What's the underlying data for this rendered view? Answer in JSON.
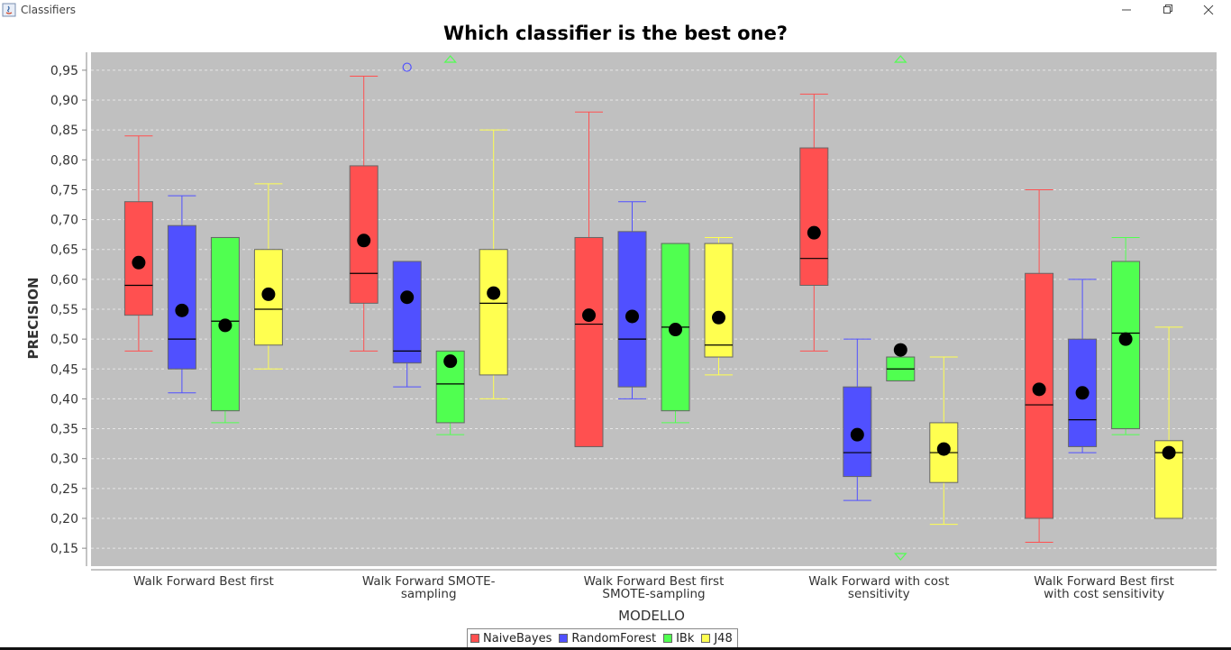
{
  "window": {
    "title": "Classifiers",
    "icons": {
      "app": "java-icon",
      "minimize": "minimize-icon",
      "maximize": "restore-icon",
      "close": "close-icon"
    }
  },
  "chart_data": {
    "type": "boxplot",
    "title": "Which classifier is the best one?",
    "xlabel": "MODELLO",
    "ylabel": "PRECISION",
    "ylim": [
      0.12,
      0.98
    ],
    "yticks": [
      0.95,
      0.9,
      0.85,
      0.8,
      0.75,
      0.7,
      0.65,
      0.6,
      0.55,
      0.5,
      0.45,
      0.4,
      0.35,
      0.3,
      0.25,
      0.2,
      0.15
    ],
    "ytick_labels": [
      "0,95",
      "0,90",
      "0,85",
      "0,80",
      "0,75",
      "0,70",
      "0,65",
      "0,60",
      "0,55",
      "0,50",
      "0,45",
      "0,40",
      "0,35",
      "0,30",
      "0,25",
      "0,20",
      "0,15"
    ],
    "grid": true,
    "legend_position": "bottom-center",
    "colors": {
      "plot_background": "#c0c0c0",
      "grid": "#e6e6e6"
    },
    "categories": [
      [
        "Walk Forward Best first"
      ],
      [
        "Walk Forward SMOTE-",
        "sampling"
      ],
      [
        "Walk Forward Best first",
        "SMOTE-sampling"
      ],
      [
        "Walk Forward with cost",
        "sensitivity"
      ],
      [
        "Walk Forward Best first",
        "with cost sensitivity"
      ]
    ],
    "series": [
      {
        "name": "NaiveBayes",
        "color": "#ff5050",
        "boxes": [
          {
            "min": 0.48,
            "q1": 0.54,
            "median": 0.59,
            "q3": 0.73,
            "max": 0.84,
            "mean": 0.628,
            "outliers": []
          },
          {
            "min": 0.48,
            "q1": 0.56,
            "median": 0.61,
            "q3": 0.79,
            "max": 0.94,
            "mean": 0.665,
            "outliers": []
          },
          {
            "min": 0.32,
            "q1": 0.32,
            "median": 0.525,
            "q3": 0.67,
            "max": 0.88,
            "mean": 0.54,
            "outliers": []
          },
          {
            "min": 0.48,
            "q1": 0.59,
            "median": 0.635,
            "q3": 0.82,
            "max": 0.91,
            "mean": 0.678,
            "outliers": []
          },
          {
            "min": 0.16,
            "q1": 0.2,
            "median": 0.39,
            "q3": 0.61,
            "max": 0.75,
            "mean": 0.416,
            "outliers": []
          }
        ]
      },
      {
        "name": "RandomForest",
        "color": "#5050ff",
        "boxes": [
          {
            "min": 0.41,
            "q1": 0.45,
            "median": 0.5,
            "q3": 0.69,
            "max": 0.74,
            "mean": 0.548,
            "outliers": []
          },
          {
            "min": 0.42,
            "q1": 0.46,
            "median": 0.48,
            "q3": 0.63,
            "max": 0.63,
            "mean": 0.57,
            "outliers": [
              0.955
            ]
          },
          {
            "min": 0.4,
            "q1": 0.42,
            "median": 0.5,
            "q3": 0.68,
            "max": 0.73,
            "mean": 0.538,
            "outliers": []
          },
          {
            "min": 0.23,
            "q1": 0.27,
            "median": 0.31,
            "q3": 0.42,
            "max": 0.5,
            "mean": 0.34,
            "outliers": []
          },
          {
            "min": 0.31,
            "q1": 0.32,
            "median": 0.365,
            "q3": 0.5,
            "max": 0.6,
            "mean": 0.41,
            "outliers": []
          }
        ]
      },
      {
        "name": "IBk",
        "color": "#50ff50",
        "boxes": [
          {
            "min": 0.36,
            "q1": 0.38,
            "median": 0.53,
            "q3": 0.67,
            "max": 0.67,
            "mean": 0.523,
            "outliers": []
          },
          {
            "min": 0.34,
            "q1": 0.36,
            "median": 0.425,
            "q3": 0.48,
            "max": 0.48,
            "mean": 0.463,
            "outliers": [],
            "far_out_above": true
          },
          {
            "min": 0.36,
            "q1": 0.38,
            "median": 0.52,
            "q3": 0.66,
            "max": 0.66,
            "mean": 0.516,
            "outliers": []
          },
          {
            "min": 0.43,
            "q1": 0.43,
            "median": 0.45,
            "q3": 0.47,
            "max": 0.47,
            "mean": 0.482,
            "outliers": [],
            "far_out_above": true,
            "far_out_below": true
          },
          {
            "min": 0.34,
            "q1": 0.35,
            "median": 0.51,
            "q3": 0.63,
            "max": 0.67,
            "mean": 0.5,
            "outliers": []
          }
        ]
      },
      {
        "name": "J48",
        "color": "#ffff50",
        "boxes": [
          {
            "min": 0.45,
            "q1": 0.49,
            "median": 0.55,
            "q3": 0.65,
            "max": 0.76,
            "mean": 0.575,
            "outliers": []
          },
          {
            "min": 0.4,
            "q1": 0.44,
            "median": 0.56,
            "q3": 0.65,
            "max": 0.85,
            "mean": 0.577,
            "outliers": []
          },
          {
            "min": 0.44,
            "q1": 0.47,
            "median": 0.49,
            "q3": 0.66,
            "max": 0.67,
            "mean": 0.536,
            "outliers": []
          },
          {
            "min": 0.19,
            "q1": 0.26,
            "median": 0.31,
            "q3": 0.36,
            "max": 0.47,
            "mean": 0.316,
            "outliers": []
          },
          {
            "min": 0.2,
            "q1": 0.2,
            "median": 0.31,
            "q3": 0.33,
            "max": 0.52,
            "mean": 0.31,
            "outliers": []
          }
        ]
      }
    ]
  }
}
